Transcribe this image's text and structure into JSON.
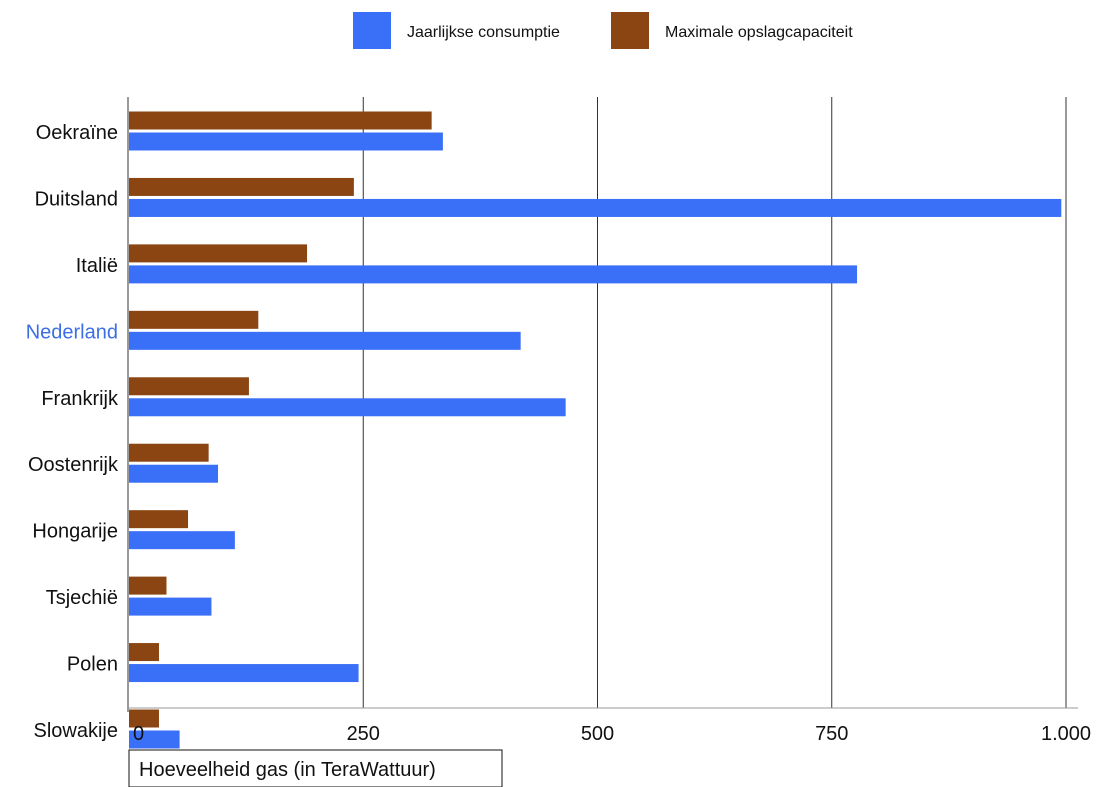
{
  "chart_data": {
    "type": "bar",
    "orientation": "horizontal",
    "categories": [
      "Oekraïne",
      "Duitsland",
      "Italië",
      "Nederland",
      "Frankrijk",
      "Oostenrijk",
      "Hongarije",
      "Tsjechië",
      "Polen",
      "Slowakije"
    ],
    "highlighted_category": "Nederland",
    "series": [
      {
        "name": "Maximale opslagcapaciteit",
        "color": "#8b4513",
        "values": [
          323,
          240,
          190,
          138,
          128,
          85,
          63,
          40,
          32,
          32
        ]
      },
      {
        "name": "Jaarlijkse consumptie",
        "color": "#3a6ff7",
        "values": [
          335,
          995,
          777,
          418,
          466,
          95,
          113,
          88,
          245,
          54
        ]
      }
    ],
    "legend_order": [
      "Jaarlijkse consumptie",
      "Maximale opslagcapaciteit"
    ],
    "legend_position": "top",
    "xlabel": "Hoeveelheid gas (in TeraWattuur)",
    "ylabel": "",
    "xlim": [
      0,
      1000
    ],
    "ticks": [
      0,
      250,
      500,
      750,
      1000
    ],
    "tick_labels": [
      "0",
      "250",
      "500",
      "750",
      "1.000"
    ],
    "grid": true,
    "highlight_color": "#3c6fe6"
  }
}
